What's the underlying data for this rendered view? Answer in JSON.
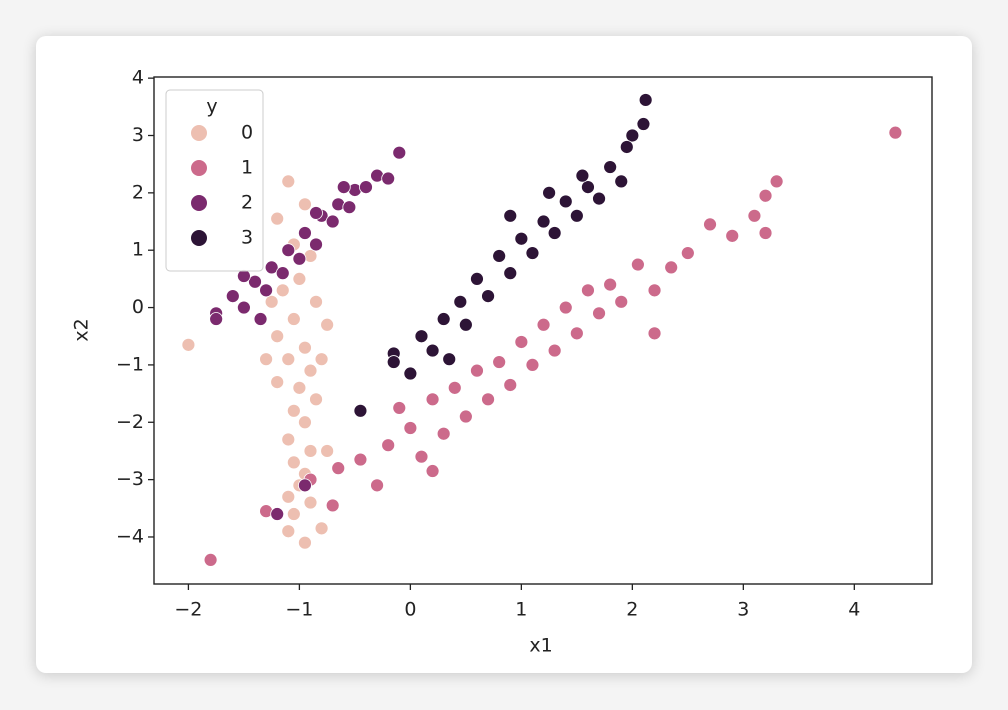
{
  "chart_data": {
    "type": "scatter",
    "xlabel": "x1",
    "ylabel": "x2",
    "legend_title": "y",
    "legend_loc": "upper left",
    "xlim": [
      -2.31,
      4.7
    ],
    "ylim": [
      -4.82,
      4.02
    ],
    "xticks": [
      {
        "value": -2,
        "label": "−2"
      },
      {
        "value": -1,
        "label": "−1"
      },
      0,
      1,
      2,
      3,
      4
    ],
    "yticks": [
      {
        "value": -4,
        "label": "−4"
      },
      {
        "value": -3,
        "label": "−3"
      },
      {
        "value": -2,
        "label": "−2"
      },
      {
        "value": -1,
        "label": "−1"
      },
      0,
      1,
      2,
      3,
      4
    ],
    "series": [
      {
        "name": "0",
        "color": "#edbfb1",
        "x": [
          -2.0,
          -1.1,
          -1.2,
          -0.95,
          -1.05,
          -0.9,
          -1.0,
          -1.15,
          -0.85,
          -1.05,
          -0.75,
          -1.2,
          -0.95,
          -1.1,
          -0.9,
          -1.2,
          -1.0,
          -0.85,
          -1.05,
          -0.95,
          -1.1,
          -0.9,
          -1.05,
          -0.95,
          -1.0,
          -1.1,
          -0.9,
          -1.05,
          -1.1,
          -0.95,
          -0.8,
          -1.3,
          -0.8,
          -0.75,
          -1.25
        ],
        "values": [
          -0.65,
          2.2,
          1.55,
          1.8,
          1.1,
          0.9,
          0.5,
          0.3,
          0.1,
          -0.2,
          -0.3,
          -0.5,
          -0.7,
          -0.9,
          -1.1,
          -1.3,
          -1.4,
          -1.6,
          -1.8,
          -2.0,
          -2.3,
          -2.5,
          -2.7,
          -2.9,
          -3.1,
          -3.3,
          -3.4,
          -3.6,
          -3.9,
          -4.1,
          -3.85,
          -0.9,
          -0.9,
          -2.5,
          0.1
        ]
      },
      {
        "name": "1",
        "color": "#cc6a8b",
        "x": [
          -1.8,
          -1.3,
          -0.7,
          -0.65,
          -0.45,
          -0.3,
          -0.2,
          -0.1,
          0.0,
          0.1,
          0.2,
          0.3,
          0.4,
          0.5,
          0.6,
          0.7,
          0.8,
          0.9,
          1.0,
          1.1,
          1.2,
          1.3,
          1.4,
          1.5,
          1.6,
          1.7,
          1.8,
          1.9,
          2.05,
          2.2,
          2.35,
          2.2,
          2.5,
          2.7,
          2.9,
          3.1,
          3.2,
          3.3,
          3.2,
          4.37,
          0.2,
          -0.9
        ],
        "values": [
          -4.4,
          -3.55,
          -3.45,
          -2.8,
          -2.65,
          -3.1,
          -2.4,
          -1.75,
          -2.1,
          -2.6,
          -1.6,
          -2.2,
          -1.4,
          -1.9,
          -1.1,
          -1.6,
          -0.95,
          -1.35,
          -0.6,
          -1.0,
          -0.3,
          -0.75,
          0.0,
          -0.45,
          0.3,
          -0.1,
          0.4,
          0.1,
          0.75,
          0.3,
          0.7,
          -0.45,
          0.95,
          1.45,
          1.25,
          1.6,
          1.3,
          2.2,
          1.95,
          3.05,
          -2.85,
          -3.0
        ]
      },
      {
        "name": "2",
        "color": "#7b2a6e",
        "x": [
          -1.75,
          -1.75,
          -1.6,
          -1.5,
          -1.4,
          -1.3,
          -1.25,
          -1.15,
          -1.1,
          -1.0,
          -0.95,
          -0.85,
          -0.8,
          -0.7,
          -0.65,
          -0.55,
          -0.5,
          -0.4,
          -0.3,
          -0.2,
          -0.1,
          -0.85,
          -1.35,
          -1.2,
          -0.95,
          -1.5,
          -0.6
        ],
        "values": [
          -0.1,
          -0.2,
          0.2,
          0.0,
          0.45,
          0.3,
          0.7,
          0.6,
          1.0,
          0.85,
          1.3,
          1.1,
          1.6,
          1.5,
          1.8,
          1.75,
          2.05,
          2.1,
          2.3,
          2.25,
          2.7,
          1.65,
          -0.2,
          -3.6,
          -3.1,
          0.55,
          2.1
        ]
      },
      {
        "name": "3",
        "color": "#2d1436",
        "x": [
          -0.45,
          -0.15,
          -0.15,
          0.0,
          0.1,
          0.2,
          0.3,
          0.35,
          0.45,
          0.5,
          0.6,
          0.7,
          0.8,
          0.9,
          1.0,
          1.1,
          1.2,
          1.3,
          1.4,
          1.5,
          1.6,
          1.7,
          1.8,
          1.9,
          2.0,
          2.1,
          2.12,
          1.95,
          1.55,
          0.9,
          1.25
        ],
        "values": [
          -1.8,
          -0.8,
          -0.95,
          -1.15,
          -0.5,
          -0.75,
          -0.2,
          -0.9,
          0.1,
          -0.3,
          0.5,
          0.2,
          0.9,
          0.6,
          1.2,
          0.95,
          1.5,
          1.3,
          1.85,
          1.6,
          2.1,
          1.9,
          2.45,
          2.2,
          3.0,
          3.2,
          3.62,
          2.8,
          2.3,
          1.6,
          2.0
        ]
      }
    ]
  }
}
